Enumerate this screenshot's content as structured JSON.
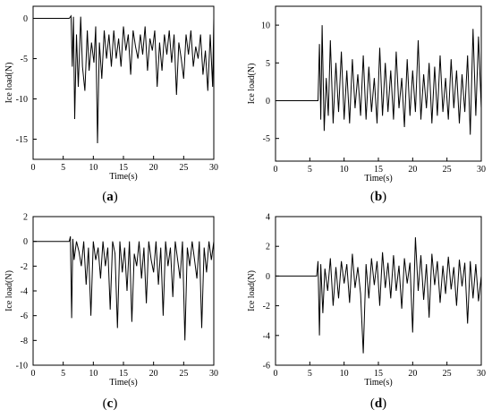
{
  "figure": {
    "panels": [
      {
        "caption": "(a)",
        "letter": "a"
      },
      {
        "caption": "(b)",
        "letter": "b"
      },
      {
        "caption": "(c)",
        "letter": "c"
      },
      {
        "caption": "(d)",
        "letter": "d"
      }
    ]
  },
  "chart_data": [
    {
      "id": "a",
      "type": "line",
      "xlabel": "Time(s)",
      "ylabel": "Ice load(N)",
      "xlim": [
        0,
        30
      ],
      "ylim": [
        -17.5,
        1.5
      ],
      "xticks": [
        0,
        5,
        10,
        15,
        20,
        25,
        30
      ],
      "yticks": [
        0,
        -5,
        -10,
        -15
      ],
      "grid": false,
      "series": [
        {
          "x": [
            0,
            6.0,
            6.3,
            6.5,
            6.7,
            6.9,
            7.2,
            7.5,
            7.9,
            8.2,
            8.6,
            9.0,
            9.3,
            9.7,
            10.1,
            10.4,
            10.7,
            11.0,
            11.4,
            11.8,
            12.2,
            12.6,
            13.0,
            13.4,
            13.8,
            14.2,
            14.6,
            15.0,
            15.4,
            15.8,
            16.2,
            16.6,
            17.0,
            17.4,
            17.8,
            18.2,
            18.6,
            19.0,
            19.4,
            19.8,
            20.2,
            20.6,
            21.0,
            21.4,
            21.8,
            22.2,
            22.6,
            23.0,
            23.4,
            23.8,
            24.2,
            24.6,
            25.0,
            25.4,
            25.8,
            26.2,
            26.6,
            27.0,
            27.4,
            27.8,
            28.2,
            28.6,
            29.0,
            29.4,
            29.8,
            30.0
          ],
          "y": [
            0,
            0,
            0.3,
            -6.0,
            0.2,
            -12.5,
            -2.0,
            -8.5,
            0.2,
            -6.0,
            -9.0,
            -1.5,
            -6.5,
            -3.0,
            -5.5,
            -1.0,
            -15.5,
            -3.0,
            -7.5,
            -1.5,
            -5.0,
            -2.0,
            -6.0,
            -1.5,
            -5.0,
            -2.5,
            -6.0,
            -1.0,
            -4.0,
            -2.0,
            -7.0,
            -1.5,
            -3.5,
            -5.0,
            -2.0,
            -4.5,
            -1.0,
            -6.5,
            -2.5,
            -4.0,
            -1.5,
            -8.5,
            -3.0,
            -6.5,
            -2.0,
            -4.5,
            -1.5,
            -5.5,
            -2.0,
            -9.5,
            -3.0,
            -5.0,
            -7.5,
            -2.0,
            -4.5,
            -1.5,
            -6.0,
            -3.5,
            -5.0,
            -2.0,
            -7.0,
            -4.0,
            -9.0,
            -2.0,
            -8.5,
            0
          ]
        }
      ]
    },
    {
      "id": "b",
      "type": "line",
      "xlabel": "Time(s)",
      "ylabel": "Ice load(N)",
      "xlim": [
        0,
        30
      ],
      "ylim": [
        -8,
        12.5
      ],
      "xticks": [
        0,
        5,
        10,
        15,
        20,
        25,
        30
      ],
      "yticks": [
        10,
        5,
        0,
        -5
      ],
      "grid": false,
      "series": [
        {
          "x": [
            0,
            6.2,
            6.4,
            6.6,
            6.8,
            7.1,
            7.4,
            7.7,
            8.0,
            8.4,
            8.8,
            9.2,
            9.6,
            10.0,
            10.4,
            10.8,
            11.2,
            11.6,
            12.0,
            12.4,
            12.8,
            13.2,
            13.6,
            14.0,
            14.4,
            14.8,
            15.2,
            15.6,
            16.0,
            16.4,
            16.8,
            17.2,
            17.6,
            18.0,
            18.4,
            18.8,
            19.2,
            19.6,
            20.0,
            20.4,
            20.8,
            21.2,
            21.6,
            22.0,
            22.4,
            22.8,
            23.2,
            23.6,
            24.0,
            24.4,
            24.8,
            25.2,
            25.6,
            26.0,
            26.4,
            26.8,
            27.2,
            27.6,
            28.0,
            28.4,
            28.8,
            29.2,
            29.6,
            30.0
          ],
          "y": [
            0,
            0,
            7.5,
            -2.5,
            10.0,
            -4.0,
            3.0,
            -2.0,
            8.0,
            -3.0,
            5.0,
            -1.5,
            6.5,
            -2.5,
            4.0,
            -3.0,
            5.5,
            -1.0,
            3.5,
            -2.0,
            6.0,
            -2.5,
            4.5,
            -1.5,
            3.0,
            -3.0,
            7.0,
            -2.0,
            5.0,
            -1.5,
            4.0,
            -2.5,
            6.5,
            -1.0,
            3.0,
            -3.5,
            5.5,
            -2.0,
            4.0,
            -1.5,
            8.0,
            -2.5,
            3.5,
            -1.0,
            5.0,
            -3.0,
            4.5,
            -2.0,
            6.0,
            -1.5,
            3.0,
            -2.5,
            5.5,
            -1.0,
            4.0,
            -3.0,
            3.5,
            -1.5,
            6.0,
            -4.5,
            9.5,
            -2.0,
            8.5,
            -1.0
          ]
        }
      ]
    },
    {
      "id": "c",
      "type": "line",
      "xlabel": "Time(s)",
      "ylabel": "Ice load(N)",
      "xlim": [
        0,
        30
      ],
      "ylim": [
        -10,
        2
      ],
      "xticks": [
        0,
        5,
        10,
        15,
        20,
        25,
        30
      ],
      "yticks": [
        2,
        0,
        -2,
        -4,
        -6,
        -8,
        -10
      ],
      "grid": false,
      "series": [
        {
          "x": [
            0,
            6.0,
            6.2,
            6.4,
            6.6,
            6.8,
            7.2,
            7.6,
            8.0,
            8.4,
            8.8,
            9.2,
            9.6,
            10.0,
            10.4,
            10.8,
            11.2,
            11.6,
            12.0,
            12.4,
            12.8,
            13.2,
            13.6,
            14.0,
            14.4,
            14.8,
            15.2,
            15.6,
            16.0,
            16.4,
            16.8,
            17.2,
            17.6,
            18.0,
            18.4,
            18.8,
            19.2,
            19.6,
            20.0,
            20.4,
            20.8,
            21.2,
            21.6,
            22.0,
            22.4,
            22.8,
            23.2,
            23.6,
            24.0,
            24.4,
            24.8,
            25.2,
            25.6,
            26.0,
            26.4,
            26.8,
            27.2,
            27.6,
            28.0,
            28.4,
            28.8,
            29.2,
            29.6,
            30.0
          ],
          "y": [
            0,
            0,
            0.4,
            -6.2,
            0.2,
            -1.5,
            0,
            -0.8,
            -2.0,
            0,
            -3.5,
            -0.5,
            -6.0,
            0,
            -1.5,
            -0.5,
            -3.0,
            0,
            -2.0,
            -0.5,
            -5.5,
            0,
            -1.0,
            -7.0,
            0,
            -2.5,
            -0.5,
            -4.0,
            0,
            -6.5,
            -1.0,
            -2.0,
            0,
            -3.0,
            -0.5,
            -5.0,
            0,
            -1.5,
            -2.5,
            0,
            -3.5,
            -0.5,
            -6.0,
            0,
            -2.0,
            -0.5,
            -4.5,
            0,
            -1.5,
            -3.0,
            0,
            -8.0,
            -0.5,
            -2.0,
            0,
            -1.5,
            -3.0,
            0,
            -7.0,
            -0.5,
            -2.5,
            0,
            -1.5,
            0
          ]
        }
      ]
    },
    {
      "id": "d",
      "type": "line",
      "xlabel": "Time(s)",
      "ylabel": "Ice load(N)",
      "xlim": [
        0,
        30
      ],
      "ylim": [
        -6,
        4
      ],
      "xticks": [
        0,
        5,
        10,
        15,
        20,
        25,
        30
      ],
      "yticks": [
        4,
        2,
        0,
        -2,
        -4,
        -6
      ],
      "grid": false,
      "series": [
        {
          "x": [
            0,
            6.0,
            6.2,
            6.4,
            6.6,
            6.9,
            7.2,
            7.6,
            8.0,
            8.4,
            8.8,
            9.2,
            9.6,
            10.0,
            10.4,
            10.8,
            11.2,
            11.6,
            12.0,
            12.4,
            12.8,
            13.2,
            13.6,
            14.0,
            14.4,
            14.8,
            15.2,
            15.6,
            16.0,
            16.4,
            16.8,
            17.2,
            17.6,
            18.0,
            18.4,
            18.8,
            19.2,
            19.6,
            20.0,
            20.4,
            20.8,
            21.2,
            21.6,
            22.0,
            22.4,
            22.8,
            23.2,
            23.6,
            24.0,
            24.4,
            24.8,
            25.2,
            25.6,
            26.0,
            26.4,
            26.8,
            27.2,
            27.6,
            28.0,
            28.4,
            28.8,
            29.2,
            29.6,
            30.0
          ],
          "y": [
            0,
            0,
            1.0,
            -4.0,
            0.8,
            -2.5,
            0.5,
            -1.0,
            1.2,
            -2.0,
            0.6,
            -1.5,
            1.0,
            -0.5,
            0.8,
            -1.8,
            1.5,
            -0.8,
            0.6,
            -1.2,
            -5.2,
            0.8,
            -1.5,
            1.2,
            -0.6,
            1.0,
            -2.0,
            1.6,
            -0.8,
            0.9,
            -1.5,
            1.4,
            -1.0,
            0.7,
            -2.2,
            1.2,
            -0.5,
            0.9,
            -3.8,
            2.6,
            -1.0,
            1.4,
            -1.6,
            0.8,
            -2.8,
            1.5,
            -0.6,
            1.0,
            -1.8,
            0.7,
            -1.2,
            1.3,
            -0.9,
            0.6,
            -2.0,
            1.1,
            -0.7,
            0.9,
            -3.2,
            1.0,
            -1.5,
            0.8,
            -1.7,
            0
          ]
        }
      ]
    }
  ]
}
